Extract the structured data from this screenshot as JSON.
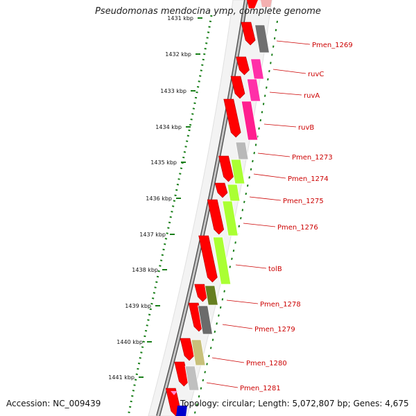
{
  "title": "Pseudomonas mendocina ymp, complete genome",
  "accession": "Accession: NC_009439",
  "summary": "Topology: circular; Length: 5,072,807 bp; Genes: 4,675",
  "ticks": [
    "1431 kbp",
    "1432 kbp",
    "1433 kbp",
    "1434 kbp",
    "1435 kbp",
    "1436 kbp",
    "1437 kbp",
    "1438 kbp",
    "1439 kbp",
    "1440 kbp",
    "1441 kbp"
  ],
  "genes": [
    {
      "name": "Pmen_1269",
      "color": "#707070"
    },
    {
      "name": "ruvC",
      "color": "#ff2fa8"
    },
    {
      "name": "ruvA",
      "color": "#ff2fa8"
    },
    {
      "name": "ruvB",
      "color": "#ff1f8f"
    },
    {
      "name": "Pmen_1273",
      "color": "#b9b9b9"
    },
    {
      "name": "Pmen_1274",
      "color": "#aaff33"
    },
    {
      "name": "Pmen_1275",
      "color": "#aaff33"
    },
    {
      "name": "Pmen_1276",
      "color": "#aaff33"
    },
    {
      "name": "tolB",
      "color": "#aaff33"
    },
    {
      "name": "Pmen_1278",
      "color": "#667f20"
    },
    {
      "name": "Pmen_1279",
      "color": "#6b6b6b"
    },
    {
      "name": "Pmen_1280",
      "color": "#c8c07a"
    },
    {
      "name": "Pmen_1281",
      "color": "#c0c0c0"
    }
  ],
  "colors": {
    "cds_forward": "#ff0000",
    "backbone": "#777777",
    "gc_skew": "#1a7f1a",
    "label": "#cc0000",
    "rna": "#0000cc"
  }
}
